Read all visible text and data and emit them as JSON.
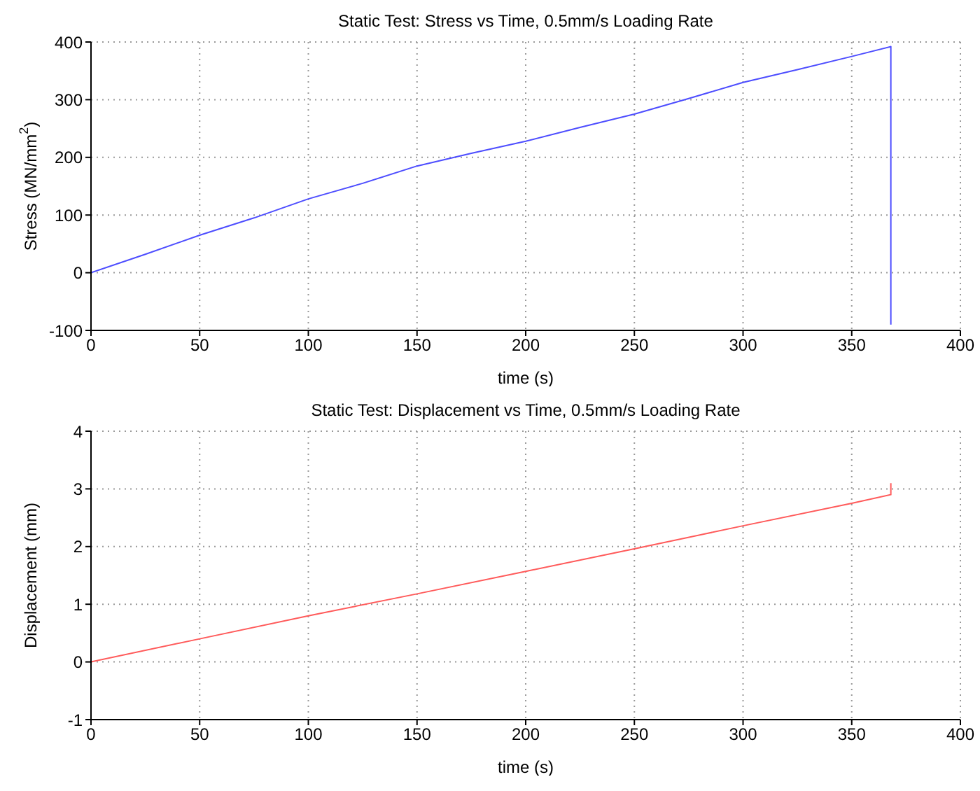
{
  "chart_data": [
    {
      "type": "line",
      "title": "Static Test: Stress vs Time, 0.5mm/s Loading Rate",
      "xlabel": "time (s)",
      "ylabel": "Stress (MN/mm$^{2}$)",
      "series": [
        {
          "color": "#4d4dff",
          "x": [
            0,
            25,
            50,
            75,
            100,
            125,
            150,
            175,
            200,
            225,
            250,
            275,
            300,
            325,
            350,
            368,
            368,
            368
          ],
          "values": [
            0,
            32,
            65,
            95,
            128,
            155,
            185,
            207,
            228,
            252,
            275,
            302,
            330,
            352,
            375,
            392,
            0,
            -90
          ]
        }
      ],
      "xlim": [
        0,
        400
      ],
      "xticks": [
        0,
        50,
        100,
        150,
        200,
        250,
        300,
        350,
        400
      ],
      "ylim": [
        -100,
        400
      ],
      "yticks": [
        -100,
        0,
        100,
        200,
        300,
        400
      ],
      "grid": true,
      "line_style": "solid"
    },
    {
      "type": "line",
      "title": "Static Test: Displacement vs Time, 0.5mm/s Loading Rate",
      "xlabel": "time (s)",
      "ylabel": "Displacement (mm)",
      "series": [
        {
          "color": "#ff5a5a",
          "x": [
            0,
            50,
            100,
            150,
            200,
            250,
            300,
            350,
            368,
            368
          ],
          "values": [
            0,
            0.4,
            0.8,
            1.18,
            1.57,
            1.96,
            2.36,
            2.75,
            2.9,
            3.1
          ]
        }
      ],
      "xlim": [
        0,
        400
      ],
      "xticks": [
        0,
        50,
        100,
        150,
        200,
        250,
        300,
        350,
        400
      ],
      "ylim": [
        -1,
        4
      ],
      "yticks": [
        -1,
        0,
        1,
        2,
        3,
        4
      ],
      "grid": true,
      "line_style": "solid"
    }
  ]
}
